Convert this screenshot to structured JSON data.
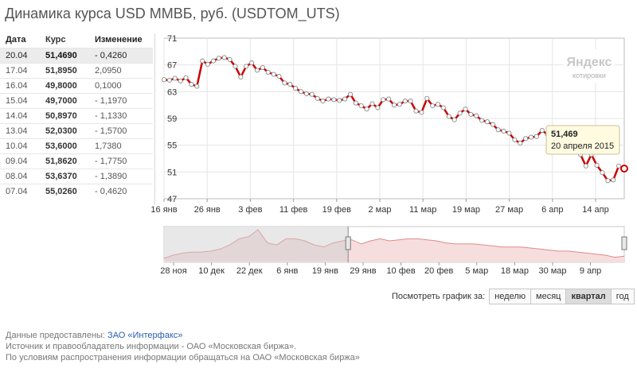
{
  "title": "Динамика курса USD ММВБ, руб. (USDTOM_UTS)",
  "table": {
    "headers": {
      "date": "Дата",
      "rate": "Курс",
      "change": "Изменение"
    },
    "rows": [
      {
        "date": "20.04",
        "rate": "51,4690",
        "change": "- 0,4260"
      },
      {
        "date": "17.04",
        "rate": "51,8950",
        "change": "2,0950"
      },
      {
        "date": "16.04",
        "rate": "49,8000",
        "change": "0,1000"
      },
      {
        "date": "15.04",
        "rate": "49,7000",
        "change": "- 1,1970"
      },
      {
        "date": "14.04",
        "rate": "50,8970",
        "change": "- 1,1330"
      },
      {
        "date": "13.04",
        "rate": "52,0300",
        "change": "- 1,5700"
      },
      {
        "date": "10.04",
        "rate": "53,6000",
        "change": "1,7380"
      },
      {
        "date": "09.04",
        "rate": "51,8620",
        "change": "- 1,7750"
      },
      {
        "date": "08.04",
        "rate": "53,6370",
        "change": "- 1,3890"
      },
      {
        "date": "07.04",
        "rate": "55,0260",
        "change": "- 0,4620"
      }
    ]
  },
  "logo": {
    "brand": "Яндекс",
    "sub": "котировки"
  },
  "tooltip": {
    "value": "51,469",
    "date": "20 апреля 2015"
  },
  "chart_data": {
    "type": "line",
    "ylim": [
      47,
      71
    ],
    "yticks": [
      47,
      51,
      55,
      59,
      63,
      67,
      71
    ],
    "xticks": [
      "16 янв",
      "26 янв",
      "3 фев",
      "11 фев",
      "19 фев",
      "2 мар",
      "11 мар",
      "19 мар",
      "27 мар",
      "6 апр",
      "14 апр"
    ],
    "series": [
      {
        "color": "#cc0000",
        "values": [
          64.8,
          64.7,
          65.0,
          64.6,
          65.1,
          64.1,
          63.8,
          67.6,
          67.1,
          67.6,
          68.0,
          68.1,
          67.8,
          66.8,
          65.2,
          66.8,
          67.3,
          66.2,
          66.6,
          65.9,
          65.6,
          65.3,
          64.3,
          64.1,
          63.5,
          63.0,
          62.7,
          62.6,
          62.0,
          61.6,
          61.9,
          61.8,
          61.7,
          61.9,
          62.6,
          61.3,
          60.9,
          60.4,
          61.2,
          60.6,
          61.8,
          61.9,
          61.0,
          61.1,
          61.6,
          61.6,
          60.1,
          59.9,
          62.0,
          60.9,
          61.1,
          60.6,
          59.3,
          58.8,
          59.8,
          60.4,
          59.6,
          59.4,
          58.7,
          58.5,
          58.1,
          57.3,
          57.1,
          56.8,
          55.8,
          55.3,
          56.0,
          56.2,
          56.3,
          57.2,
          56.6,
          57.1,
          56.4,
          55.8,
          55.6,
          55.0,
          53.6,
          51.9,
          53.6,
          52.0,
          50.9,
          49.7,
          49.8,
          51.9,
          51.5
        ]
      }
    ]
  },
  "navigator": {
    "xticks": [
      "28 ноя",
      "10 дек",
      "22 дек",
      "6 янв",
      "19 янв",
      "29 янв",
      "10 фев",
      "20 фев",
      "5 мар",
      "18 мар",
      "30 мар",
      "9 апр"
    ],
    "values": [
      49,
      52,
      54,
      55,
      55,
      56,
      58,
      62,
      68,
      70,
      77,
      64,
      62,
      68,
      68,
      66,
      62,
      60,
      64,
      66,
      67,
      63,
      66,
      68,
      66,
      67,
      68,
      68,
      67,
      66,
      64,
      63,
      63,
      63,
      62,
      61,
      60,
      60,
      60,
      59,
      58,
      57,
      56,
      56,
      55,
      54,
      53,
      52,
      50,
      51
    ],
    "ylim": [
      45,
      80
    ],
    "selection": [
      0.4,
      1.0
    ]
  },
  "range": {
    "label": "Посмотреть график за:",
    "buttons": [
      {
        "label": "неделю",
        "active": false
      },
      {
        "label": "месяц",
        "active": false
      },
      {
        "label": "квартал",
        "active": true
      },
      {
        "label": "год",
        "active": false
      }
    ]
  },
  "footer": {
    "line1_prefix": "Данные предоставлены: ",
    "line1_link": "ЗАО «Интерфакс»",
    "line2": "Источник и правообладатель информации - ОАО «Московская биржа».",
    "line3": "По условиям распространения информации обращаться на ОАО «Московская биржа»"
  }
}
